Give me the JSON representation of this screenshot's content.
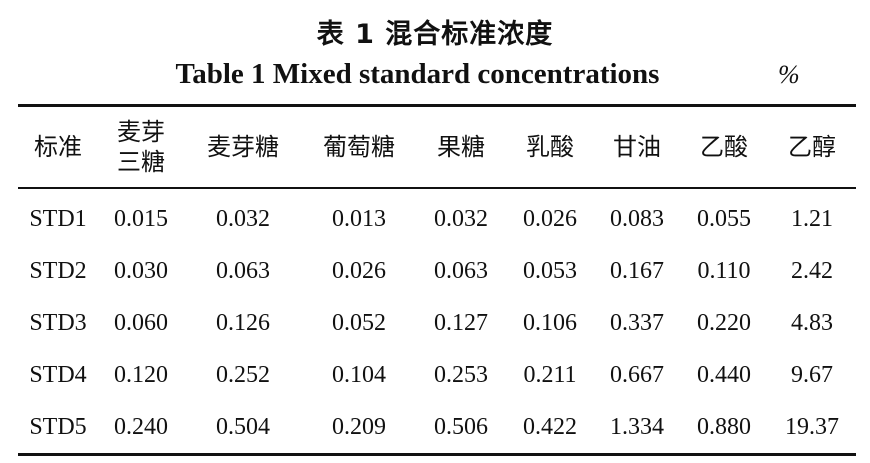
{
  "caption": {
    "cn": "表 1  混合标准浓度",
    "en": "Table 1 Mixed standard concentrations",
    "unit": "%"
  },
  "table": {
    "headers": [
      [
        "标准"
      ],
      [
        "麦芽",
        "三糖"
      ],
      [
        "麦芽糖"
      ],
      [
        "葡萄糖"
      ],
      [
        "果糖"
      ],
      [
        "乳酸"
      ],
      [
        "甘油"
      ],
      [
        "乙酸"
      ],
      [
        "乙醇"
      ]
    ],
    "rows": [
      [
        "STD1",
        "0.015",
        "0.032",
        "0.013",
        "0.032",
        "0.026",
        "0.083",
        "0.055",
        "1.21"
      ],
      [
        "STD2",
        "0.030",
        "0.063",
        "0.026",
        "0.063",
        "0.053",
        "0.167",
        "0.110",
        "2.42"
      ],
      [
        "STD3",
        "0.060",
        "0.126",
        "0.052",
        "0.127",
        "0.106",
        "0.337",
        "0.220",
        "4.83"
      ],
      [
        "STD4",
        "0.120",
        "0.252",
        "0.104",
        "0.253",
        "0.211",
        "0.667",
        "0.440",
        "9.67"
      ],
      [
        "STD5",
        "0.240",
        "0.504",
        "0.209",
        "0.506",
        "0.422",
        "1.334",
        "0.880",
        "19.37"
      ]
    ]
  }
}
